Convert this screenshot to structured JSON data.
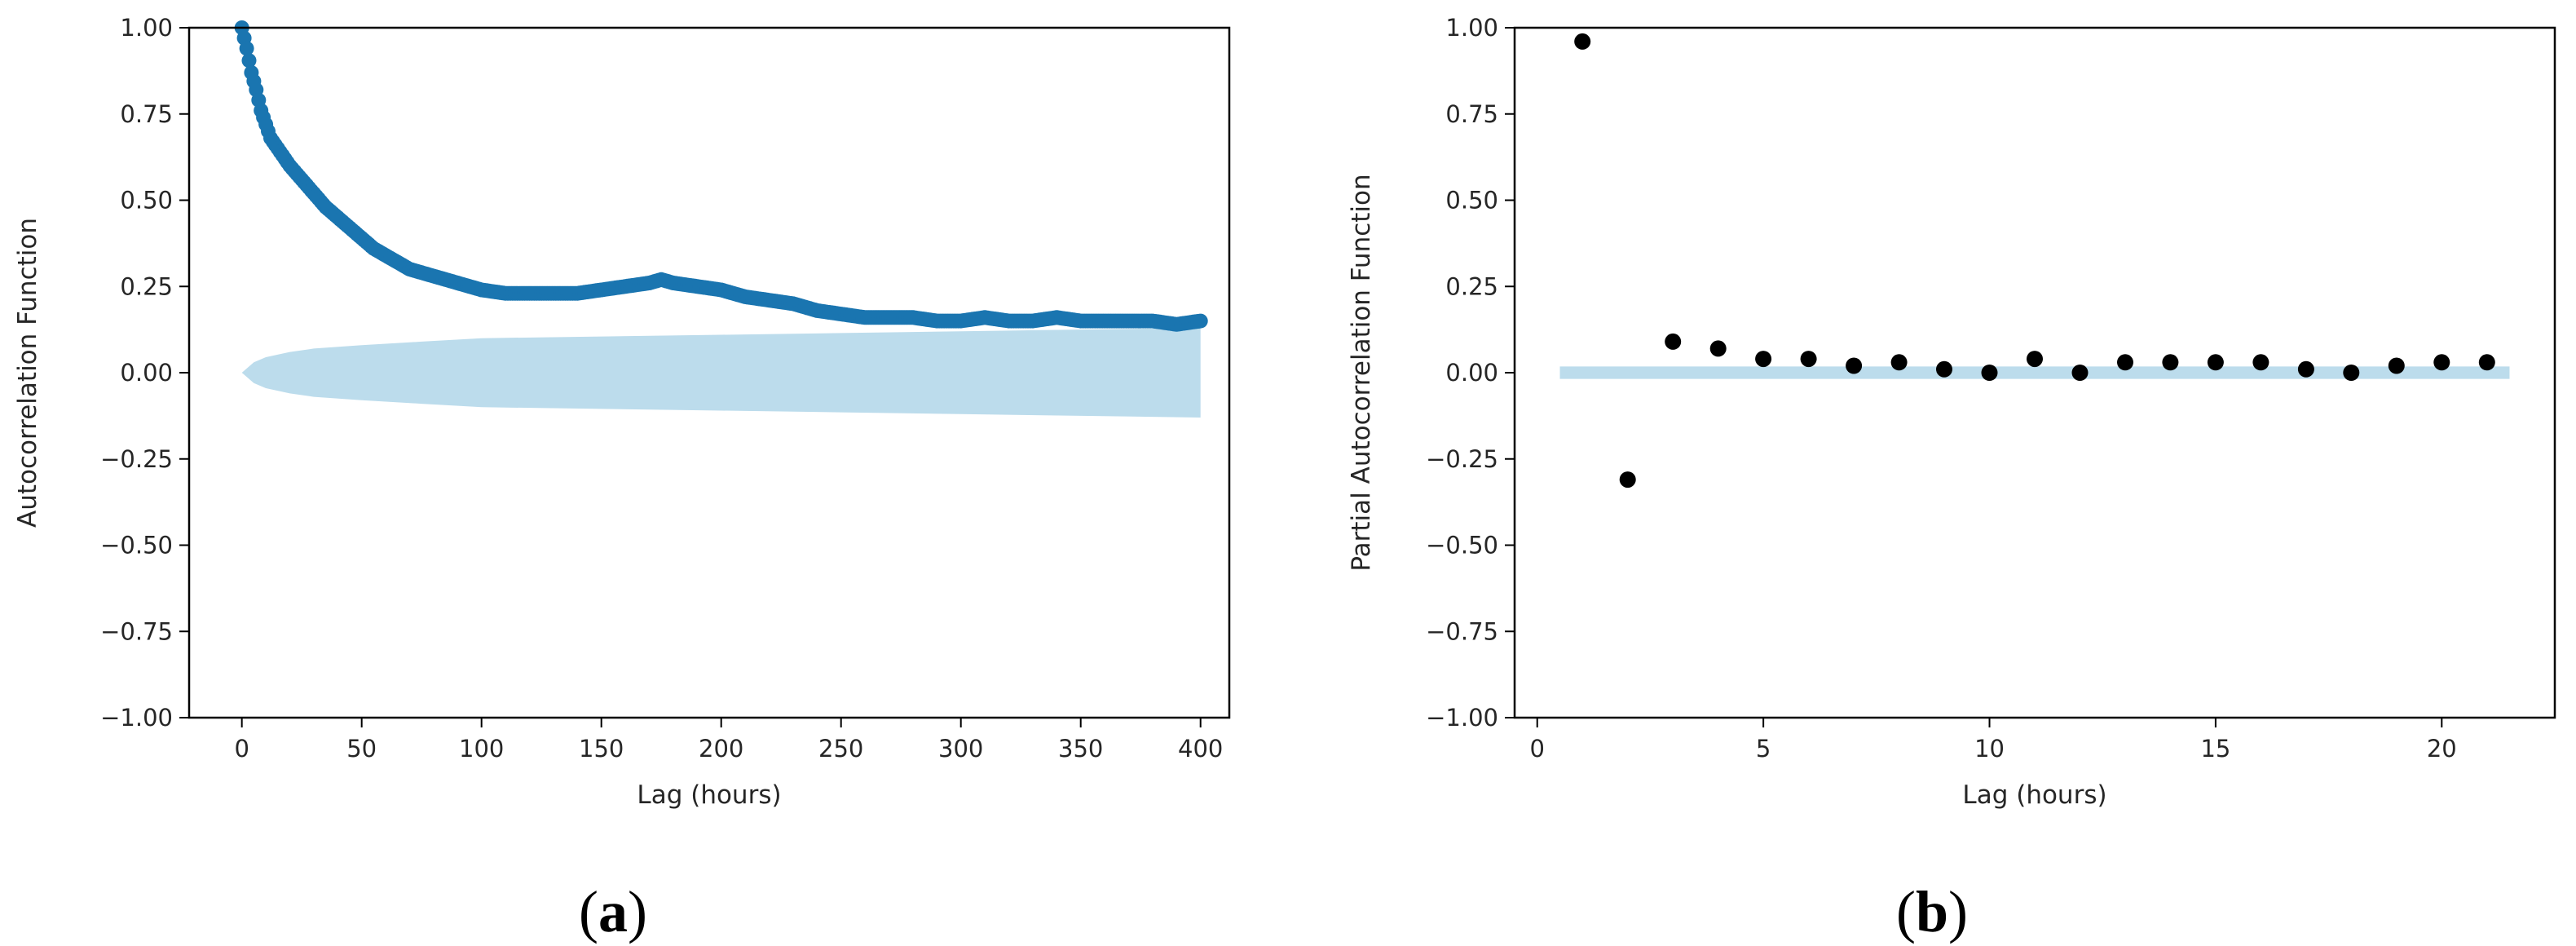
{
  "colors": {
    "acf_points": "#1a75b0",
    "confidence_band": "#bcdcec",
    "pacf_points": "#000000",
    "axes": "#000000"
  },
  "chart_data": [
    {
      "type": "scatter",
      "panel_label": {
        "open": "(",
        "letter": "a",
        "close": ")"
      },
      "xlabel": "Lag (hours)",
      "ylabel": "Autocorrelation Function",
      "xlim": [
        -22,
        412
      ],
      "ylim": [
        -1.0,
        1.0
      ],
      "xticks": [
        0,
        50,
        100,
        150,
        200,
        250,
        300,
        350,
        400
      ],
      "yticks": [
        -1.0,
        -0.75,
        -0.5,
        -0.25,
        0.0,
        0.25,
        0.5,
        0.75,
        1.0
      ],
      "xtick_labels": [
        "0",
        "50",
        "100",
        "150",
        "200",
        "250",
        "300",
        "350",
        "400"
      ],
      "ytick_labels": [
        "−1.00",
        "−0.75",
        "−0.50",
        "−0.25",
        "0.00",
        "0.25",
        "0.50",
        "0.75",
        "1.00"
      ],
      "grid": false,
      "series": [
        {
          "role": "acf",
          "x": [
            0,
            2,
            4,
            6,
            8,
            10,
            12,
            15,
            18,
            20,
            25,
            30,
            35,
            40,
            45,
            50,
            55,
            60,
            65,
            70,
            75,
            80,
            90,
            100,
            110,
            120,
            130,
            140,
            150,
            160,
            170,
            175,
            180,
            190,
            200,
            210,
            220,
            230,
            240,
            250,
            260,
            270,
            280,
            290,
            300,
            310,
            320,
            330,
            340,
            350,
            360,
            370,
            380,
            390,
            400
          ],
          "y": [
            1.0,
            0.94,
            0.87,
            0.82,
            0.76,
            0.72,
            0.68,
            0.65,
            0.62,
            0.6,
            0.56,
            0.52,
            0.48,
            0.45,
            0.42,
            0.39,
            0.36,
            0.34,
            0.32,
            0.3,
            0.29,
            0.28,
            0.26,
            0.24,
            0.23,
            0.23,
            0.23,
            0.23,
            0.24,
            0.25,
            0.26,
            0.27,
            0.26,
            0.25,
            0.24,
            0.22,
            0.21,
            0.2,
            0.18,
            0.17,
            0.16,
            0.16,
            0.16,
            0.15,
            0.15,
            0.16,
            0.15,
            0.15,
            0.16,
            0.15,
            0.15,
            0.15,
            0.15,
            0.14,
            0.15
          ]
        }
      ],
      "confidence_band": {
        "x": [
          0,
          5,
          10,
          20,
          30,
          50,
          75,
          100,
          150,
          200,
          250,
          300,
          350,
          400
        ],
        "upper": [
          0.0,
          0.03,
          0.045,
          0.06,
          0.07,
          0.08,
          0.09,
          0.1,
          0.105,
          0.11,
          0.115,
          0.12,
          0.125,
          0.13
        ],
        "lower": [
          0.0,
          -0.03,
          -0.045,
          -0.06,
          -0.07,
          -0.08,
          -0.09,
          -0.1,
          -0.105,
          -0.11,
          -0.115,
          -0.12,
          -0.125,
          -0.13
        ]
      }
    },
    {
      "type": "scatter",
      "panel_label": {
        "open": "(",
        "letter": "b",
        "close": ")"
      },
      "xlabel": "Lag (hours)",
      "ylabel": "Partial Autocorrelation Function",
      "xlim": [
        -0.5,
        22.5
      ],
      "ylim": [
        -1.0,
        1.0
      ],
      "xticks": [
        0,
        5,
        10,
        15,
        20
      ],
      "yticks": [
        -1.0,
        -0.75,
        -0.5,
        -0.25,
        0.0,
        0.25,
        0.5,
        0.75,
        1.0
      ],
      "xtick_labels": [
        "0",
        "5",
        "10",
        "15",
        "20"
      ],
      "ytick_labels": [
        "−1.00",
        "−0.75",
        "−0.50",
        "−0.25",
        "0.00",
        "0.25",
        "0.50",
        "0.75",
        "1.00"
      ],
      "grid": false,
      "series": [
        {
          "role": "pacf",
          "x": [
            1,
            2,
            3,
            4,
            5,
            6,
            7,
            8,
            9,
            10,
            11,
            12,
            13,
            14,
            15,
            16,
            17,
            18,
            19,
            20,
            21
          ],
          "y": [
            0.96,
            -0.31,
            0.09,
            0.07,
            0.04,
            0.04,
            0.02,
            0.03,
            0.01,
            0.0,
            0.04,
            0.0,
            0.03,
            0.03,
            0.03,
            0.03,
            0.01,
            0.0,
            0.02,
            0.03,
            0.03
          ]
        }
      ],
      "confidence_band": {
        "x": [
          0.5,
          21.5
        ],
        "upper": [
          0.018,
          0.018
        ],
        "lower": [
          -0.018,
          -0.018
        ]
      }
    }
  ]
}
